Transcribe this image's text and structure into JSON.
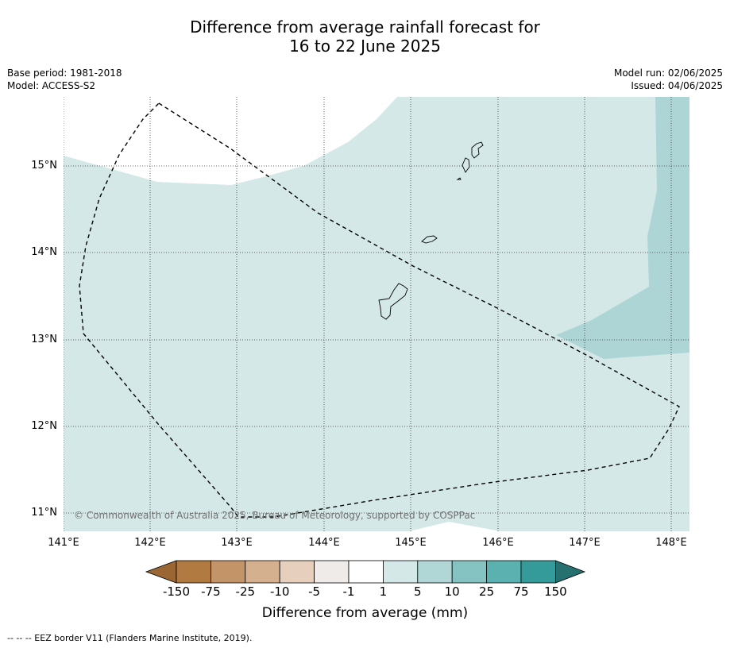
{
  "title": {
    "line1": "Difference from average rainfall forecast for",
    "line2": "16 to 22 June 2025"
  },
  "meta": {
    "base_period": "Base period: 1981-2018",
    "model": "Model: ACCESS-S2",
    "model_run": "Model run: 02/06/2025",
    "issued": "Issued: 04/06/2025"
  },
  "axes": {
    "x_ticks": [
      "141°E",
      "142°E",
      "143°E",
      "144°E",
      "145°E",
      "146°E",
      "147°E",
      "148°E"
    ],
    "y_ticks": [
      "15°N",
      "14°N",
      "13°N",
      "12°N",
      "11°N"
    ]
  },
  "copyright": "© Commonwealth of Australia 2025, Bureau of Meteorology, supported by COSPPac",
  "colorbar": {
    "ticks": [
      "-150",
      "-75",
      "-25",
      "-10",
      "-5",
      "-1",
      "1",
      "5",
      "10",
      "25",
      "75",
      "150"
    ],
    "colors": [
      "#9a6633",
      "#b07a40",
      "#c29468",
      "#d4b08e",
      "#e6d0bd",
      "#eeebe8",
      "#ffffff",
      "#d4e8e8",
      "#b0d6d6",
      "#85c3c3",
      "#5bb0b0",
      "#349a9a",
      "#26716f"
    ],
    "title": "Difference from average (mm)"
  },
  "footnote": "--  --  -- EEZ border V11 (Flanders Marine Institute, 2019).",
  "map_colors": {
    "light_teal": "#d4e8e8",
    "medium_teal": "#aed5d5"
  }
}
